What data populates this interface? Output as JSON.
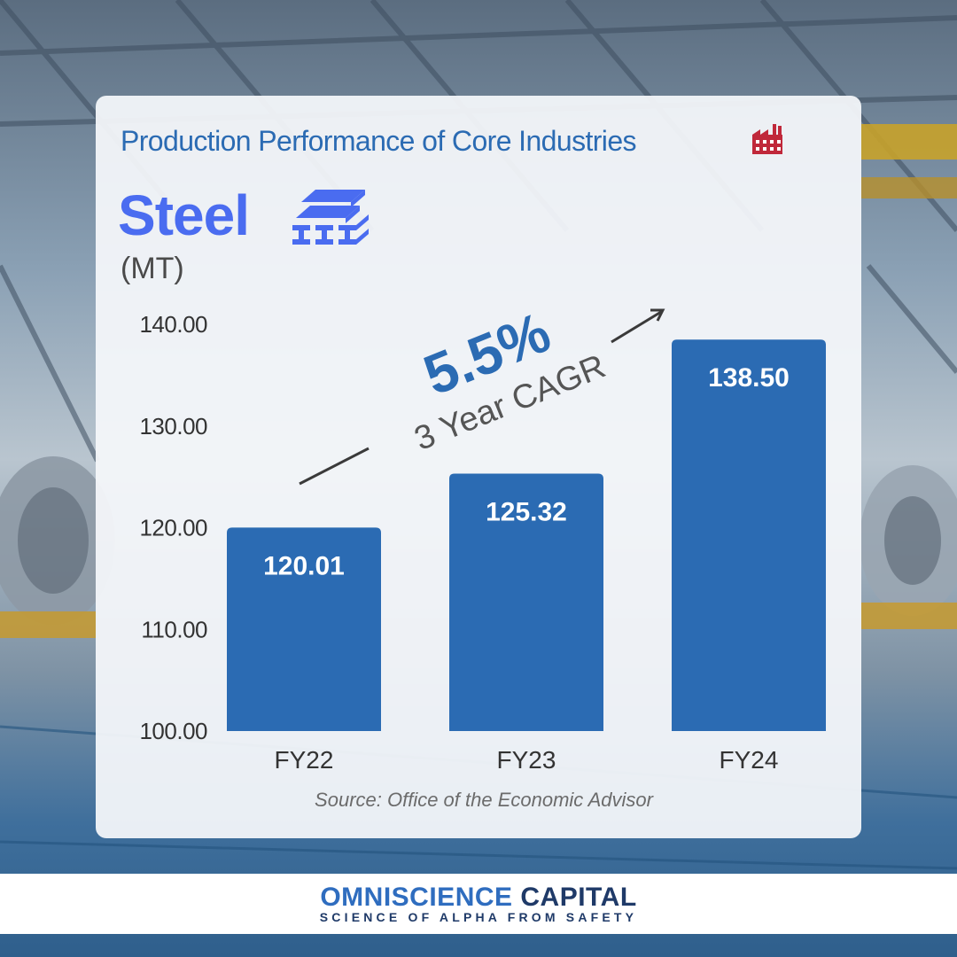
{
  "header": {
    "title": "Production Performance of Core Industries",
    "title_icon": "factory-icon",
    "subject": "Steel",
    "subject_icon": "steel-beams-icon",
    "unit": "(MT)"
  },
  "cagr": {
    "value": "5.5%",
    "label": "3 Year CAGR"
  },
  "source": "Source: Office of the Economic Advisor",
  "brand": {
    "name_part1": "OMNISCIENCE",
    "name_part2": "CAPITAL",
    "tagline": "SCIENCE OF ALPHA FROM SAFETY"
  },
  "colors": {
    "bar": "#2b6bb3",
    "title": "#2b6bb3",
    "subject": "#4a6cf0",
    "factory_icon": "#c0283a"
  },
  "chart_data": {
    "type": "bar",
    "categories": [
      "FY22",
      "FY23",
      "FY24"
    ],
    "values": [
      120.01,
      125.32,
      138.5
    ],
    "value_labels": [
      "120.01",
      "125.32",
      "138.50"
    ],
    "title": "",
    "xlabel": "",
    "ylabel": "(MT)",
    "ylim": [
      100,
      140
    ],
    "yticks": [
      "100.00",
      "110.00",
      "120.00",
      "130.00",
      "140.00"
    ],
    "grid": false,
    "legend": "none"
  }
}
